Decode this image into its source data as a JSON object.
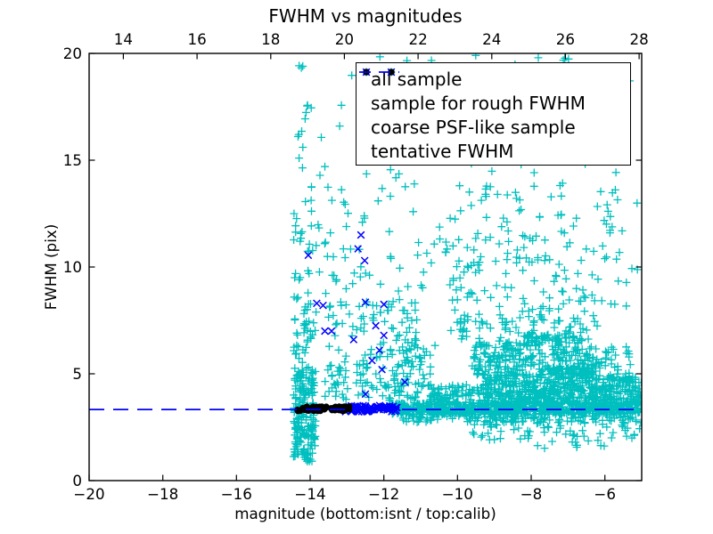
{
  "chart_data": {
    "type": "scatter",
    "title": "FWHM vs magnitudes",
    "xlabel": "magnitude (bottom:isnt / top:calib)",
    "ylabel": "FWHM (pix)",
    "x_axis_bottom": {
      "range": [
        -20,
        -5
      ],
      "tick_values": [
        -20,
        -18,
        -16,
        -14,
        -12,
        -10,
        -8,
        -6
      ],
      "tick_labels": [
        "−20",
        "−18",
        "−16",
        "−14",
        "−12",
        "−10",
        "−8",
        "−6"
      ]
    },
    "x_axis_top": {
      "range": [
        13.07,
        28.07
      ],
      "tick_values": [
        14,
        16,
        18,
        20,
        22,
        24,
        26,
        28
      ],
      "tick_labels": [
        "14",
        "16",
        "18",
        "20",
        "22",
        "24",
        "26",
        "28"
      ]
    },
    "y_axis": {
      "range": [
        0,
        20
      ],
      "tick_values": [
        0,
        5,
        10,
        15,
        20
      ],
      "tick_labels": [
        "0",
        "5",
        "10",
        "15",
        "20"
      ]
    },
    "tentative_fwhm": 3.33,
    "colors": {
      "all_sample": "#00bfbf",
      "rough_sample": "#0000ff",
      "coarse_sample": "#000000",
      "tentative_line": "#0000ff",
      "frame": "#000000"
    },
    "legend": [
      {
        "label": "all sample",
        "marker": "plus"
      },
      {
        "label": "sample for rough FWHM",
        "marker": "x"
      },
      {
        "label": "coarse PSF-like sample",
        "marker": "dot"
      },
      {
        "label": "tentative FWHM",
        "marker": "dash"
      }
    ],
    "seed": 20,
    "series": {
      "all_sample": {
        "marker": "plus",
        "clusters": [
          [
            -11.8,
            -5.0,
            3.1,
            3.65,
            700
          ],
          [
            -11.5,
            -5.0,
            2.72,
            3.12,
            130
          ],
          [
            -11.6,
            -10.6,
            3.8,
            6.5,
            35
          ],
          [
            -10.8,
            -9.3,
            3.6,
            4.5,
            80
          ],
          [
            -9.3,
            -7.8,
            3.6,
            5.0,
            200
          ],
          [
            -7.8,
            -6.3,
            3.6,
            5.3,
            280
          ],
          [
            -6.3,
            -5.0,
            3.6,
            4.9,
            150
          ],
          [
            -9.6,
            -8.2,
            4.9,
            6.6,
            120
          ],
          [
            -8.2,
            -6.6,
            5.2,
            6.9,
            130
          ],
          [
            -10.2,
            -6.2,
            6.6,
            8.1,
            90
          ],
          [
            -6.6,
            -5.3,
            4.9,
            6.3,
            55
          ],
          [
            -10.3,
            -6.5,
            8.1,
            10.5,
            70
          ],
          [
            -6.5,
            -5.1,
            8.1,
            10.5,
            15
          ],
          [
            -10.5,
            -7.0,
            10.5,
            13.5,
            55
          ],
          [
            -7.0,
            -5.1,
            10.5,
            13.5,
            20
          ],
          [
            -10.5,
            -5.2,
            13.5,
            16.0,
            25
          ],
          [
            -10.0,
            -5.3,
            16.0,
            19.6,
            18
          ],
          [
            -12.6,
            -5.3,
            19.62,
            19.95,
            8
          ],
          [
            -9.6,
            -5.0,
            1.8,
            2.8,
            65
          ],
          [
            -8.0,
            -5.6,
            1.3,
            1.8,
            7
          ],
          [
            -14.45,
            -13.85,
            0.9,
            3.25,
            110
          ],
          [
            -14.45,
            -13.85,
            3.25,
            5.2,
            90
          ],
          [
            -14.45,
            -13.8,
            5.2,
            9.0,
            45
          ],
          [
            -14.45,
            -13.8,
            9.0,
            13.0,
            22
          ],
          [
            -14.4,
            -13.8,
            13.0,
            17.6,
            10
          ],
          [
            -14.42,
            -14.2,
            19.3,
            19.55,
            2
          ],
          [
            -13.9,
            -11.0,
            3.75,
            4.6,
            50
          ],
          [
            -13.6,
            -11.0,
            4.6,
            6.5,
            70
          ],
          [
            -13.6,
            -11.0,
            6.5,
            8.5,
            60
          ],
          [
            -13.8,
            -10.6,
            8.5,
            11.5,
            35
          ],
          [
            -14.0,
            -11.0,
            11.5,
            14.5,
            25
          ],
          [
            -14.3,
            -11.2,
            14.5,
            17.8,
            8
          ]
        ],
        "points": [
          [
            -14.3,
            19.42
          ],
          [
            -12.87,
            18.97
          ],
          [
            -13.97,
            17.45
          ],
          [
            -14.07,
            17.57
          ],
          [
            -13.15,
            17.57
          ],
          [
            -13.2,
            16.6
          ],
          [
            -14.3,
            15.1
          ],
          [
            -13.6,
            14.7
          ]
        ]
      },
      "rough_fwhm": {
        "marker": "x",
        "band": [
          -13.05,
          -11.62,
          3.22,
          3.52,
          85
        ],
        "points": [
          [
            -12.62,
            11.5
          ],
          [
            -12.7,
            10.85
          ],
          [
            -14.05,
            10.55
          ],
          [
            -12.52,
            10.3
          ],
          [
            -13.82,
            8.3
          ],
          [
            -13.65,
            8.2
          ],
          [
            -12.5,
            8.35
          ],
          [
            -12.0,
            8.25
          ],
          [
            -13.6,
            7.0
          ],
          [
            -13.42,
            7.0
          ],
          [
            -12.22,
            7.25
          ],
          [
            -12.82,
            6.6
          ],
          [
            -12.12,
            6.1
          ],
          [
            -12.0,
            6.8
          ],
          [
            -12.32,
            5.62
          ],
          [
            -12.05,
            5.2
          ],
          [
            -12.5,
            4.05
          ],
          [
            -11.43,
            4.62
          ]
        ]
      },
      "coarse_psf": {
        "marker": "dot",
        "band": [
          -14.38,
          -12.92,
          3.25,
          3.47,
          60
        ]
      },
      "tentative_line": {
        "style": "dashed",
        "y": 3.33
      }
    }
  }
}
